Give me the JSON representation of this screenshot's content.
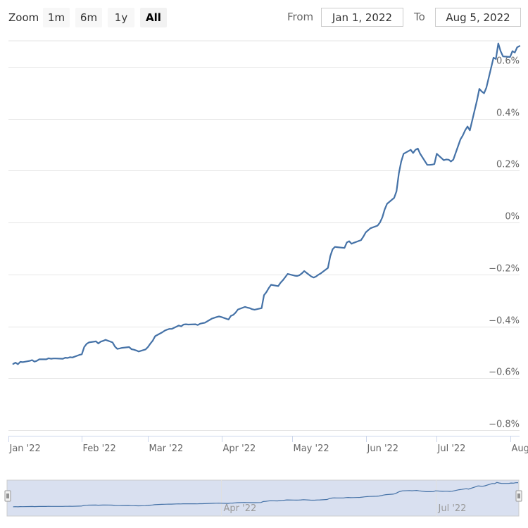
{
  "toolbar": {
    "zoom_label": "Zoom",
    "zoom_buttons": [
      "1m",
      "6m",
      "1y",
      "All"
    ],
    "active_zoom": "All",
    "from_label": "From",
    "from_value": "Jan 1, 2022",
    "to_label": "To",
    "to_value": "Aug 5, 2022"
  },
  "colors": {
    "series": "#4572a7",
    "grid": "#e6e6e6",
    "navigator_fill": "#ccd6eb",
    "navigator_line": "#4572a7"
  },
  "chart_data": {
    "type": "line",
    "title": "",
    "xlabel": "",
    "ylabel": "",
    "x_range": [
      "2022-01-01",
      "2022-08-05"
    ],
    "ylim": [
      -0.8,
      0.7
    ],
    "y_ticks": [
      -0.8,
      -0.6,
      -0.4,
      -0.2,
      0,
      0.2,
      0.4,
      0.6
    ],
    "y_tick_labels": [
      "−0.8%",
      "−0.6%",
      "−0.4%",
      "−0.2%",
      "0%",
      "0.2%",
      "0.4%",
      "0.6%"
    ],
    "x_ticks": [
      "2022-01-01",
      "2022-02-01",
      "2022-03-01",
      "2022-04-01",
      "2022-05-01",
      "2022-06-01",
      "2022-07-01",
      "2022-08-01"
    ],
    "x_tick_labels": [
      "Jan '22",
      "Feb '22",
      "Mar '22",
      "Apr '22",
      "May '22",
      "Jun '22",
      "Jul '22",
      "Aug '22"
    ],
    "navigator_tick_labels": [
      "Apr '22",
      "Jul '22"
    ],
    "navigator_ticks": [
      "2022-04-01",
      "2022-07-01"
    ],
    "grid": true,
    "series": [
      {
        "values": [
          [
            "2022-01-03",
            -0.545
          ],
          [
            "2022-01-04",
            -0.54
          ],
          [
            "2022-01-05",
            -0.546
          ],
          [
            "2022-01-06",
            -0.537
          ],
          [
            "2022-01-07",
            -0.538
          ],
          [
            "2022-01-10",
            -0.533
          ],
          [
            "2022-01-11",
            -0.53
          ],
          [
            "2022-01-12",
            -0.536
          ],
          [
            "2022-01-13",
            -0.533
          ],
          [
            "2022-01-14",
            -0.527
          ],
          [
            "2022-01-17",
            -0.527
          ],
          [
            "2022-01-18",
            -0.523
          ],
          [
            "2022-01-19",
            -0.525
          ],
          [
            "2022-01-20",
            -0.524
          ],
          [
            "2022-01-21",
            -0.524
          ],
          [
            "2022-01-24",
            -0.525
          ],
          [
            "2022-01-25",
            -0.521
          ],
          [
            "2022-01-26",
            -0.522
          ],
          [
            "2022-01-27",
            -0.519
          ],
          [
            "2022-01-28",
            -0.52
          ],
          [
            "2022-01-31",
            -0.51
          ],
          [
            "2022-02-01",
            -0.508
          ],
          [
            "2022-02-02",
            -0.48
          ],
          [
            "2022-02-03",
            -0.468
          ],
          [
            "2022-02-04",
            -0.462
          ],
          [
            "2022-02-07",
            -0.458
          ],
          [
            "2022-02-08",
            -0.466
          ],
          [
            "2022-02-09",
            -0.459
          ],
          [
            "2022-02-10",
            -0.456
          ],
          [
            "2022-02-11",
            -0.452
          ],
          [
            "2022-02-14",
            -0.462
          ],
          [
            "2022-02-15",
            -0.478
          ],
          [
            "2022-02-16",
            -0.487
          ],
          [
            "2022-02-17",
            -0.485
          ],
          [
            "2022-02-18",
            -0.483
          ],
          [
            "2022-02-21",
            -0.48
          ],
          [
            "2022-02-22",
            -0.488
          ],
          [
            "2022-02-23",
            -0.49
          ],
          [
            "2022-02-24",
            -0.493
          ],
          [
            "2022-02-25",
            -0.497
          ],
          [
            "2022-02-28",
            -0.489
          ],
          [
            "2022-03-01",
            -0.479
          ],
          [
            "2022-03-02",
            -0.466
          ],
          [
            "2022-03-03",
            -0.455
          ],
          [
            "2022-03-04",
            -0.438
          ],
          [
            "2022-03-07",
            -0.423
          ],
          [
            "2022-03-08",
            -0.417
          ],
          [
            "2022-03-09",
            -0.413
          ],
          [
            "2022-03-10",
            -0.41
          ],
          [
            "2022-03-11",
            -0.41
          ],
          [
            "2022-03-14",
            -0.397
          ],
          [
            "2022-03-15",
            -0.4
          ],
          [
            "2022-03-16",
            -0.393
          ],
          [
            "2022-03-17",
            -0.392
          ],
          [
            "2022-03-18",
            -0.393
          ],
          [
            "2022-03-21",
            -0.392
          ],
          [
            "2022-03-22",
            -0.395
          ],
          [
            "2022-03-23",
            -0.39
          ],
          [
            "2022-03-24",
            -0.388
          ],
          [
            "2022-03-25",
            -0.386
          ],
          [
            "2022-03-28",
            -0.37
          ],
          [
            "2022-03-29",
            -0.367
          ],
          [
            "2022-03-30",
            -0.364
          ],
          [
            "2022-03-31",
            -0.362
          ],
          [
            "2022-04-01",
            -0.364
          ],
          [
            "2022-04-04",
            -0.374
          ],
          [
            "2022-04-05",
            -0.36
          ],
          [
            "2022-04-06",
            -0.356
          ],
          [
            "2022-04-07",
            -0.347
          ],
          [
            "2022-04-08",
            -0.335
          ],
          [
            "2022-04-11",
            -0.325
          ],
          [
            "2022-04-12",
            -0.328
          ],
          [
            "2022-04-13",
            -0.33
          ],
          [
            "2022-04-14",
            -0.334
          ],
          [
            "2022-04-15",
            -0.336
          ],
          [
            "2022-04-18",
            -0.33
          ],
          [
            "2022-04-19",
            -0.28
          ],
          [
            "2022-04-20",
            -0.268
          ],
          [
            "2022-04-21",
            -0.253
          ],
          [
            "2022-04-22",
            -0.24
          ],
          [
            "2022-04-25",
            -0.245
          ],
          [
            "2022-04-26",
            -0.232
          ],
          [
            "2022-04-27",
            -0.222
          ],
          [
            "2022-04-28",
            -0.21
          ],
          [
            "2022-04-29",
            -0.198
          ],
          [
            "2022-05-02",
            -0.205
          ],
          [
            "2022-05-03",
            -0.206
          ],
          [
            "2022-05-04",
            -0.203
          ],
          [
            "2022-05-05",
            -0.196
          ],
          [
            "2022-05-06",
            -0.187
          ],
          [
            "2022-05-09",
            -0.208
          ],
          [
            "2022-05-10",
            -0.212
          ],
          [
            "2022-05-11",
            -0.208
          ],
          [
            "2022-05-12",
            -0.201
          ],
          [
            "2022-05-13",
            -0.196
          ],
          [
            "2022-05-16",
            -0.175
          ],
          [
            "2022-05-17",
            -0.13
          ],
          [
            "2022-05-18",
            -0.103
          ],
          [
            "2022-05-19",
            -0.094
          ],
          [
            "2022-05-20",
            -0.095
          ],
          [
            "2022-05-23",
            -0.098
          ],
          [
            "2022-05-24",
            -0.077
          ],
          [
            "2022-05-25",
            -0.072
          ],
          [
            "2022-05-26",
            -0.082
          ],
          [
            "2022-05-27",
            -0.078
          ],
          [
            "2022-05-30",
            -0.068
          ],
          [
            "2022-05-31",
            -0.054
          ],
          [
            "2022-06-01",
            -0.038
          ],
          [
            "2022-06-02",
            -0.03
          ],
          [
            "2022-06-03",
            -0.022
          ],
          [
            "2022-06-06",
            -0.012
          ],
          [
            "2022-06-07",
            0.0
          ],
          [
            "2022-06-08",
            0.02
          ],
          [
            "2022-06-09",
            0.05
          ],
          [
            "2022-06-10",
            0.072
          ],
          [
            "2022-06-13",
            0.095
          ],
          [
            "2022-06-14",
            0.12
          ],
          [
            "2022-06-15",
            0.19
          ],
          [
            "2022-06-16",
            0.235
          ],
          [
            "2022-06-17",
            0.265
          ],
          [
            "2022-06-20",
            0.28
          ],
          [
            "2022-06-21",
            0.268
          ],
          [
            "2022-06-22",
            0.28
          ],
          [
            "2022-06-23",
            0.285
          ],
          [
            "2022-06-24",
            0.265
          ],
          [
            "2022-06-27",
            0.222
          ],
          [
            "2022-06-28",
            0.222
          ],
          [
            "2022-06-29",
            0.223
          ],
          [
            "2022-06-30",
            0.225
          ],
          [
            "2022-07-01",
            0.265
          ],
          [
            "2022-07-04",
            0.24
          ],
          [
            "2022-07-05",
            0.243
          ],
          [
            "2022-07-06",
            0.242
          ],
          [
            "2022-07-07",
            0.235
          ],
          [
            "2022-07-08",
            0.242
          ],
          [
            "2022-07-11",
            0.32
          ],
          [
            "2022-07-12",
            0.335
          ],
          [
            "2022-07-13",
            0.355
          ],
          [
            "2022-07-14",
            0.37
          ],
          [
            "2022-07-15",
            0.355
          ],
          [
            "2022-07-18",
            0.47
          ],
          [
            "2022-07-19",
            0.515
          ],
          [
            "2022-07-20",
            0.505
          ],
          [
            "2022-07-21",
            0.498
          ],
          [
            "2022-07-22",
            0.52
          ],
          [
            "2022-07-25",
            0.635
          ],
          [
            "2022-07-26",
            0.63
          ],
          [
            "2022-07-27",
            0.69
          ],
          [
            "2022-07-28",
            0.66
          ],
          [
            "2022-07-29",
            0.64
          ],
          [
            "2022-08-01",
            0.638
          ],
          [
            "2022-08-02",
            0.66
          ],
          [
            "2022-08-03",
            0.655
          ],
          [
            "2022-08-04",
            0.675
          ],
          [
            "2022-08-05",
            0.68
          ]
        ]
      }
    ]
  }
}
